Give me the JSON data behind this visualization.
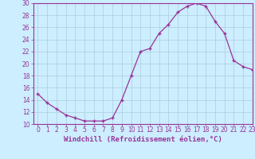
{
  "x": [
    0,
    1,
    2,
    3,
    4,
    5,
    6,
    7,
    8,
    9,
    10,
    11,
    12,
    13,
    14,
    15,
    16,
    17,
    18,
    19,
    20,
    21,
    22,
    23
  ],
  "y": [
    15.0,
    13.5,
    12.5,
    11.5,
    11.0,
    10.5,
    10.5,
    10.5,
    11.0,
    14.0,
    18.0,
    22.0,
    22.5,
    25.0,
    26.5,
    28.5,
    29.5,
    30.0,
    29.5,
    27.0,
    25.0,
    20.5,
    19.5,
    19.0
  ],
  "line_color": "#993399",
  "bg_color": "#cceeff",
  "grid_color": "#aaccdd",
  "xlabel": "Windchill (Refroidissement éolien,°C)",
  "ylim": [
    10,
    30
  ],
  "xlim": [
    -0.5,
    23
  ],
  "yticks": [
    10,
    12,
    14,
    16,
    18,
    20,
    22,
    24,
    26,
    28,
    30
  ],
  "xticks": [
    0,
    1,
    2,
    3,
    4,
    5,
    6,
    7,
    8,
    9,
    10,
    11,
    12,
    13,
    14,
    15,
    16,
    17,
    18,
    19,
    20,
    21,
    22,
    23
  ],
  "purple": "#993399",
  "font_size_xlabel": 6.5,
  "font_size_ticks": 5.5
}
